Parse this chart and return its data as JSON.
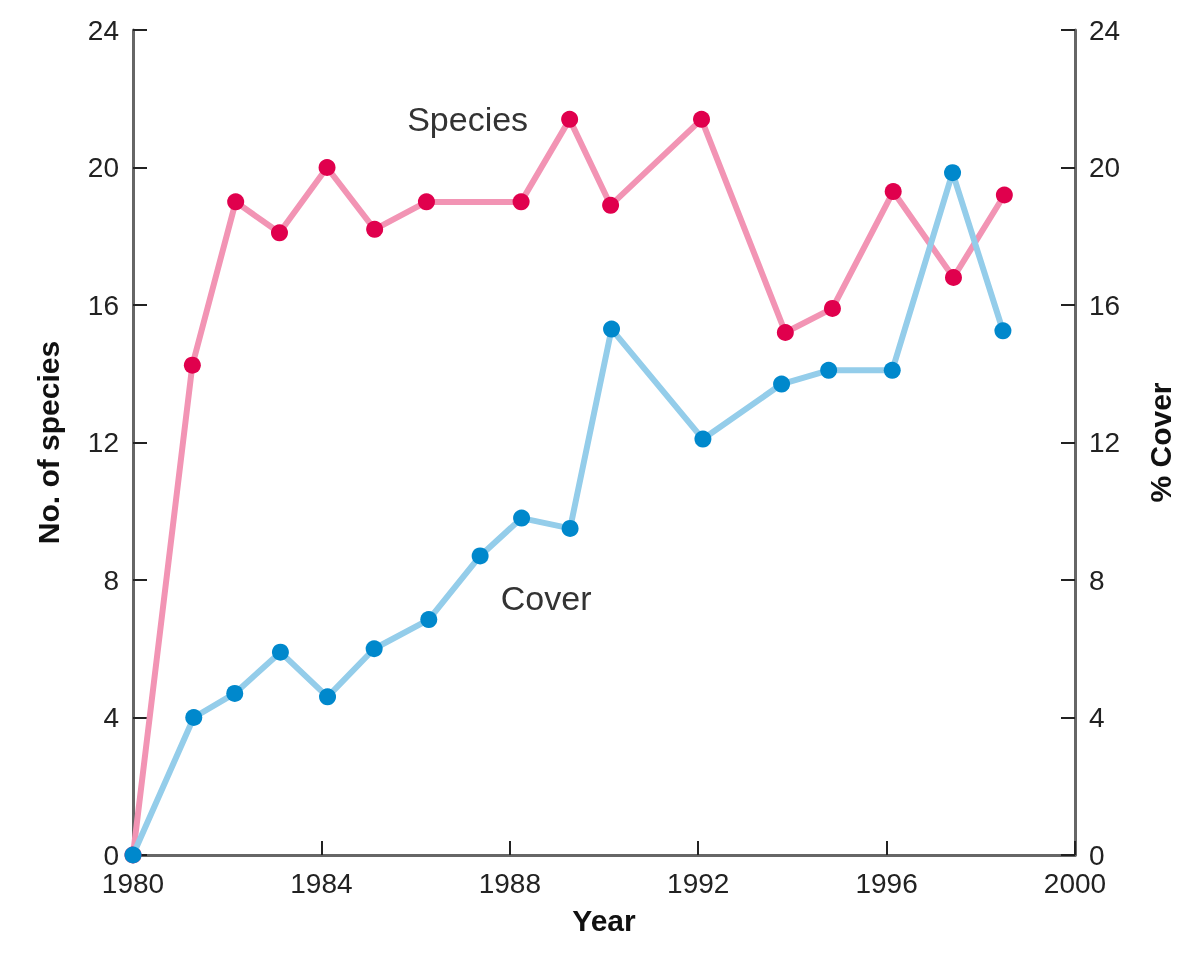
{
  "chart_data": {
    "type": "line",
    "xlabel": "Year",
    "ylabel": "No. of species",
    "y2label": "% Cover",
    "xlim": [
      1980,
      2000
    ],
    "xticks": [
      1980,
      1984,
      1988,
      1992,
      1996,
      2000
    ],
    "ylim": [
      0,
      24
    ],
    "yticks": [
      0,
      4,
      8,
      12,
      16,
      20,
      24
    ],
    "y2lim": [
      0,
      24
    ],
    "y2ticks": [
      0,
      4,
      8,
      12,
      16,
      20,
      24
    ],
    "grid": false,
    "legend": false,
    "marker": "circle",
    "line_style": "solid",
    "series": [
      {
        "name": "Species",
        "color": "#e0004d",
        "x": [
          1980,
          1981.26,
          1982.18,
          1983.11,
          1984.12,
          1985.13,
          1986.23,
          1988.24,
          1989.27,
          1990.14,
          1992.07,
          1993.85,
          1994.85,
          1996.14,
          1997.42,
          1998.5
        ],
        "values": [
          0,
          14.25,
          19,
          18.1,
          20,
          18.2,
          19,
          19,
          21.4,
          18.9,
          21.4,
          15.2,
          15.9,
          19.3,
          16.8,
          19.2
        ]
      },
      {
        "name": "Cover",
        "color": "#0088cc",
        "x": [
          1980,
          1981.29,
          1982.16,
          1983.13,
          1984.13,
          1985.12,
          1986.28,
          1987.37,
          1988.25,
          1989.28,
          1990.16,
          1992.1,
          1993.77,
          1994.77,
          1996.12,
          1997.4,
          1998.47
        ],
        "values": [
          0,
          4,
          4.7,
          5.9,
          4.6,
          6,
          6.85,
          8.7,
          9.8,
          9.5,
          15.3,
          12.1,
          13.7,
          14.1,
          14.1,
          19.85,
          15.25
        ]
      }
    ]
  }
}
